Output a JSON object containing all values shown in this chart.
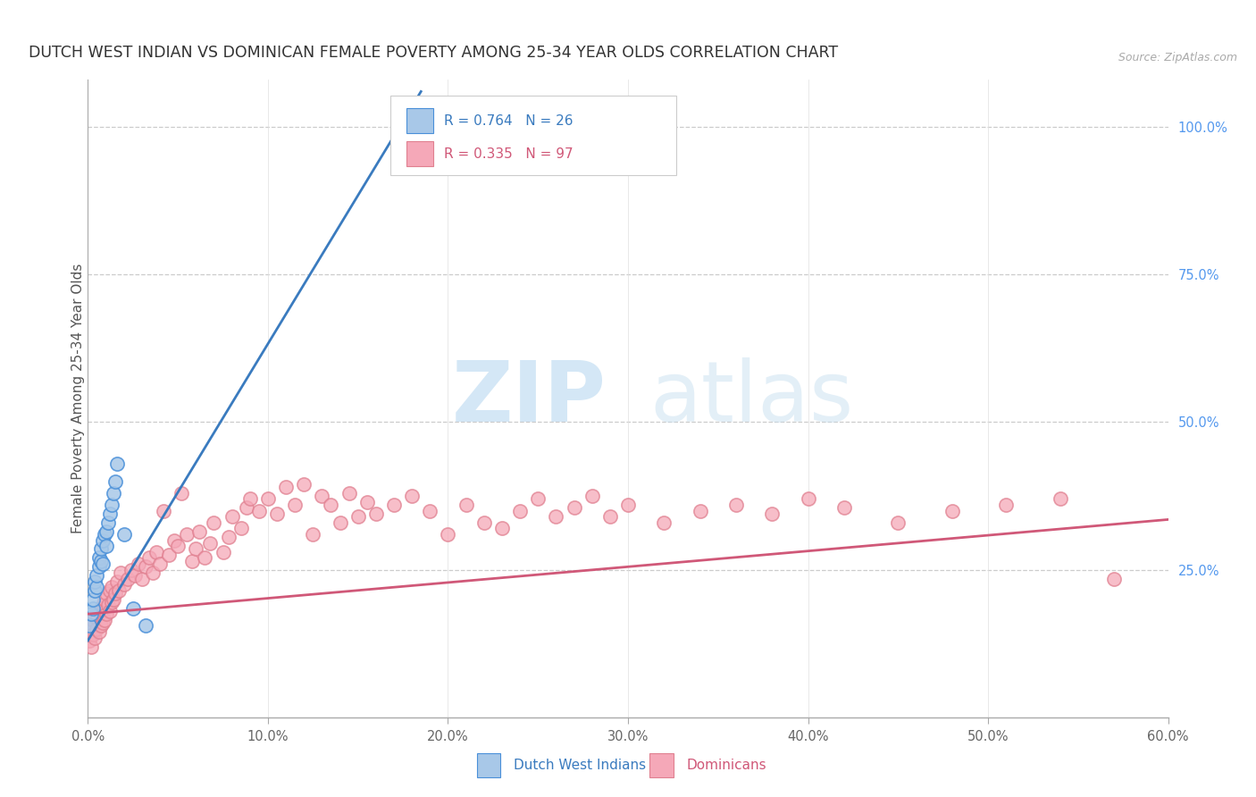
{
  "title": "DUTCH WEST INDIAN VS DOMINICAN FEMALE POVERTY AMONG 25-34 YEAR OLDS CORRELATION CHART",
  "source": "Source: ZipAtlas.com",
  "ylabel": "Female Poverty Among 25-34 Year Olds",
  "xlabel_ticks": [
    "0.0%",
    "10.0%",
    "20.0%",
    "30.0%",
    "40.0%",
    "50.0%",
    "60.0%"
  ],
  "xlabel_vals": [
    0.0,
    0.1,
    0.2,
    0.3,
    0.4,
    0.5,
    0.6
  ],
  "yright_ticks": [
    "25.0%",
    "50.0%",
    "75.0%",
    "100.0%"
  ],
  "yright_vals": [
    0.25,
    0.5,
    0.75,
    1.0
  ],
  "xmin": 0.0,
  "xmax": 0.6,
  "ymin": 0.0,
  "ymax": 1.08,
  "blue_R": 0.764,
  "blue_N": 26,
  "pink_R": 0.335,
  "pink_N": 97,
  "legend_blue_label": "Dutch West Indians",
  "legend_pink_label": "Dominicans",
  "blue_color": "#a8c8e8",
  "blue_edge_color": "#4a90d9",
  "blue_line_color": "#3a7bbf",
  "pink_color": "#f5a8b8",
  "pink_edge_color": "#e08090",
  "pink_line_color": "#d05878",
  "watermark_zip": "ZIP",
  "watermark_atlas": "atlas",
  "blue_scatter_x": [
    0.001,
    0.002,
    0.003,
    0.003,
    0.004,
    0.004,
    0.005,
    0.005,
    0.006,
    0.006,
    0.007,
    0.007,
    0.008,
    0.008,
    0.009,
    0.01,
    0.01,
    0.011,
    0.012,
    0.013,
    0.014,
    0.015,
    0.016,
    0.02,
    0.025,
    0.032
  ],
  "blue_scatter_y": [
    0.155,
    0.175,
    0.185,
    0.2,
    0.215,
    0.23,
    0.22,
    0.24,
    0.255,
    0.27,
    0.265,
    0.285,
    0.26,
    0.3,
    0.31,
    0.29,
    0.315,
    0.33,
    0.345,
    0.36,
    0.38,
    0.4,
    0.43,
    0.31,
    0.185,
    0.155
  ],
  "pink_scatter_x": [
    0.001,
    0.002,
    0.002,
    0.003,
    0.003,
    0.004,
    0.004,
    0.005,
    0.005,
    0.006,
    0.006,
    0.007,
    0.007,
    0.008,
    0.008,
    0.009,
    0.009,
    0.01,
    0.01,
    0.011,
    0.012,
    0.012,
    0.013,
    0.013,
    0.014,
    0.015,
    0.016,
    0.017,
    0.018,
    0.02,
    0.022,
    0.024,
    0.026,
    0.028,
    0.03,
    0.032,
    0.034,
    0.036,
    0.038,
    0.04,
    0.042,
    0.045,
    0.048,
    0.05,
    0.052,
    0.055,
    0.058,
    0.06,
    0.062,
    0.065,
    0.068,
    0.07,
    0.075,
    0.078,
    0.08,
    0.085,
    0.088,
    0.09,
    0.095,
    0.1,
    0.105,
    0.11,
    0.115,
    0.12,
    0.125,
    0.13,
    0.135,
    0.14,
    0.145,
    0.15,
    0.155,
    0.16,
    0.17,
    0.18,
    0.19,
    0.2,
    0.21,
    0.22,
    0.23,
    0.24,
    0.25,
    0.26,
    0.27,
    0.28,
    0.29,
    0.3,
    0.32,
    0.34,
    0.36,
    0.38,
    0.4,
    0.42,
    0.45,
    0.48,
    0.51,
    0.54,
    0.57
  ],
  "pink_scatter_y": [
    0.13,
    0.12,
    0.155,
    0.14,
    0.165,
    0.135,
    0.17,
    0.15,
    0.175,
    0.145,
    0.18,
    0.155,
    0.185,
    0.16,
    0.19,
    0.165,
    0.2,
    0.175,
    0.21,
    0.19,
    0.18,
    0.215,
    0.195,
    0.22,
    0.2,
    0.21,
    0.23,
    0.215,
    0.245,
    0.225,
    0.235,
    0.25,
    0.24,
    0.26,
    0.235,
    0.255,
    0.27,
    0.245,
    0.28,
    0.26,
    0.35,
    0.275,
    0.3,
    0.29,
    0.38,
    0.31,
    0.265,
    0.285,
    0.315,
    0.27,
    0.295,
    0.33,
    0.28,
    0.305,
    0.34,
    0.32,
    0.355,
    0.37,
    0.35,
    0.37,
    0.345,
    0.39,
    0.36,
    0.395,
    0.31,
    0.375,
    0.36,
    0.33,
    0.38,
    0.34,
    0.365,
    0.345,
    0.36,
    0.375,
    0.35,
    0.31,
    0.36,
    0.33,
    0.32,
    0.35,
    0.37,
    0.34,
    0.355,
    0.375,
    0.34,
    0.36,
    0.33,
    0.35,
    0.36,
    0.345,
    0.37,
    0.355,
    0.33,
    0.35,
    0.36,
    0.37,
    0.235
  ],
  "blue_line_x0": 0.0,
  "blue_line_y0": 0.13,
  "blue_line_x1": 0.185,
  "blue_line_y1": 1.06,
  "pink_line_x0": 0.0,
  "pink_line_y0": 0.175,
  "pink_line_x1": 0.6,
  "pink_line_y1": 0.335
}
